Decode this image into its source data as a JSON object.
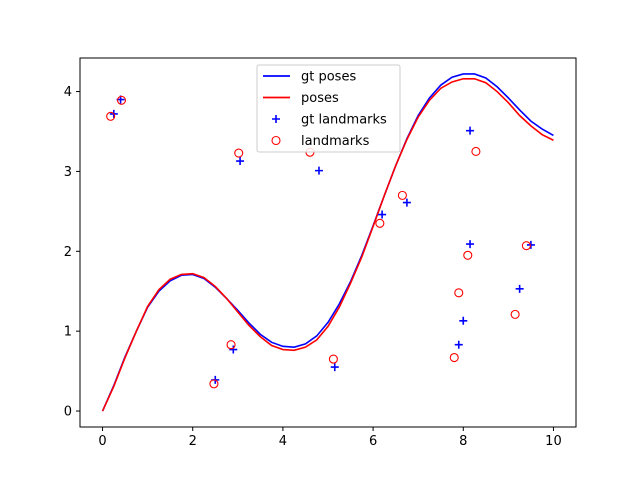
{
  "chart_data": {
    "type": "line",
    "title": "",
    "xlabel": "",
    "ylabel": "",
    "xlim": [
      -0.5,
      10.5
    ],
    "ylim": [
      -0.2,
      4.42
    ],
    "xticks": [
      0,
      2,
      4,
      6,
      8,
      10
    ],
    "yticks": [
      0,
      1,
      2,
      3,
      4
    ],
    "grid": false,
    "legend_position": "top-center",
    "series": [
      {
        "name": "gt poses",
        "kind": "line",
        "color": "#0000ff",
        "x": [
          0,
          0.25,
          0.5,
          0.75,
          1.0,
          1.25,
          1.5,
          1.75,
          2.0,
          2.25,
          2.5,
          2.75,
          3.0,
          3.25,
          3.5,
          3.75,
          4.0,
          4.25,
          4.5,
          4.75,
          5.0,
          5.25,
          5.5,
          5.75,
          6.0,
          6.25,
          6.5,
          6.75,
          7.0,
          7.25,
          7.5,
          7.75,
          8.0,
          8.25,
          8.5,
          8.75,
          9.0,
          9.25,
          9.5,
          9.75,
          10.0
        ],
        "y": [
          0.0,
          0.32,
          0.68,
          1.0,
          1.3,
          1.5,
          1.63,
          1.7,
          1.71,
          1.66,
          1.55,
          1.41,
          1.26,
          1.1,
          0.96,
          0.86,
          0.81,
          0.8,
          0.84,
          0.94,
          1.11,
          1.34,
          1.62,
          1.95,
          2.32,
          2.7,
          3.07,
          3.41,
          3.7,
          3.92,
          4.08,
          4.18,
          4.22,
          4.22,
          4.17,
          4.06,
          3.92,
          3.77,
          3.63,
          3.53,
          3.45
        ]
      },
      {
        "name": "poses",
        "kind": "line",
        "color": "#ff0000",
        "x": [
          0,
          0.25,
          0.5,
          0.75,
          1.0,
          1.25,
          1.5,
          1.75,
          2.0,
          2.25,
          2.5,
          2.75,
          3.0,
          3.25,
          3.5,
          3.75,
          4.0,
          4.25,
          4.5,
          4.75,
          5.0,
          5.25,
          5.5,
          5.75,
          6.0,
          6.25,
          6.5,
          6.75,
          7.0,
          7.25,
          7.5,
          7.75,
          8.0,
          8.25,
          8.5,
          8.75,
          9.0,
          9.25,
          9.5,
          9.75,
          10.0
        ],
        "y": [
          0.0,
          0.31,
          0.67,
          1.0,
          1.31,
          1.52,
          1.65,
          1.71,
          1.72,
          1.67,
          1.56,
          1.41,
          1.24,
          1.07,
          0.93,
          0.82,
          0.77,
          0.76,
          0.8,
          0.89,
          1.06,
          1.3,
          1.6,
          1.93,
          2.31,
          2.7,
          3.07,
          3.4,
          3.68,
          3.89,
          4.04,
          4.12,
          4.16,
          4.16,
          4.11,
          4.0,
          3.86,
          3.7,
          3.57,
          3.46,
          3.39
        ]
      },
      {
        "name": "gt landmarks",
        "kind": "scatter",
        "marker": "plus",
        "color": "#0000ff",
        "points": [
          [
            0.25,
            3.72
          ],
          [
            0.4,
            3.9
          ],
          [
            2.5,
            0.39
          ],
          [
            2.9,
            0.77
          ],
          [
            3.05,
            3.13
          ],
          [
            4.8,
            3.01
          ],
          [
            5.15,
            0.55
          ],
          [
            6.2,
            2.46
          ],
          [
            6.75,
            2.61
          ],
          [
            7.9,
            0.83
          ],
          [
            8.0,
            1.13
          ],
          [
            8.15,
            2.09
          ],
          [
            8.15,
            3.51
          ],
          [
            9.25,
            1.53
          ],
          [
            9.5,
            2.08
          ]
        ]
      },
      {
        "name": "landmarks",
        "kind": "scatter",
        "marker": "circle-open",
        "color": "#ff0000",
        "points": [
          [
            0.18,
            3.69
          ],
          [
            0.42,
            3.89
          ],
          [
            2.47,
            0.34
          ],
          [
            2.85,
            0.83
          ],
          [
            3.02,
            3.23
          ],
          [
            4.6,
            3.24
          ],
          [
            5.12,
            0.65
          ],
          [
            6.15,
            2.35
          ],
          [
            6.65,
            2.7
          ],
          [
            7.8,
            0.67
          ],
          [
            7.9,
            1.48
          ],
          [
            8.1,
            1.95
          ],
          [
            8.28,
            3.25
          ],
          [
            9.15,
            1.21
          ],
          [
            9.4,
            2.07
          ]
        ]
      }
    ]
  }
}
